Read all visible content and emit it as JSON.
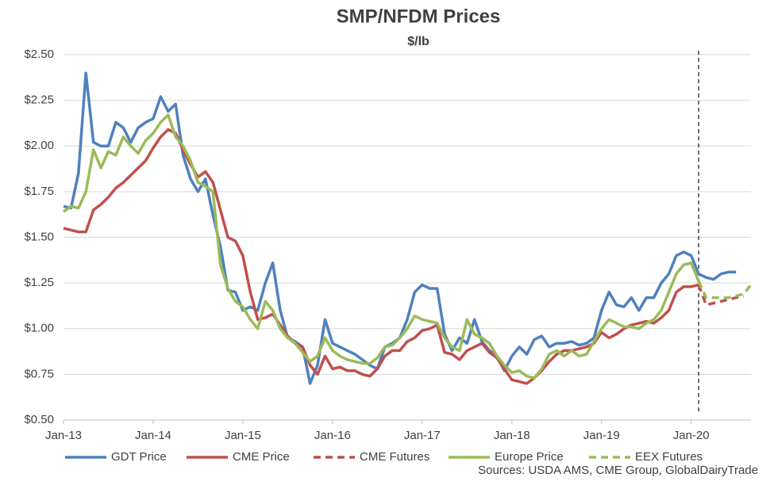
{
  "chart_data": {
    "type": "line",
    "title": "SMP/NFDM Prices",
    "subtitle": "$/lb",
    "source": "Sources:  USDA AMS, CME Group, GlobalDairyTrade",
    "categories": [
      "Jan-13",
      null,
      null,
      null,
      null,
      null,
      null,
      null,
      null,
      null,
      null,
      null,
      "Jan-14",
      null,
      null,
      null,
      null,
      null,
      null,
      null,
      null,
      null,
      null,
      null,
      "Jan-15",
      null,
      null,
      null,
      null,
      null,
      null,
      null,
      null,
      null,
      null,
      null,
      "Jan-16",
      null,
      null,
      null,
      null,
      null,
      null,
      null,
      null,
      null,
      null,
      null,
      "Jan-17",
      null,
      null,
      null,
      null,
      null,
      null,
      null,
      null,
      null,
      null,
      null,
      "Jan-18",
      null,
      null,
      null,
      null,
      null,
      null,
      null,
      null,
      null,
      null,
      null,
      "Jan-19",
      null,
      null,
      null,
      null,
      null,
      null,
      null,
      null,
      null,
      null,
      null,
      "Jan-20",
      null,
      null,
      null,
      null,
      null,
      null,
      null,
      null
    ],
    "ylim": [
      0.5,
      2.5
    ],
    "yticks": [
      {
        "value": 0.5,
        "label": "$0.50"
      },
      {
        "value": 0.75,
        "label": "$0.75"
      },
      {
        "value": 1.0,
        "label": "$1.00"
      },
      {
        "value": 1.25,
        "label": "$1.25"
      },
      {
        "value": 1.5,
        "label": "$1.50"
      },
      {
        "value": 1.75,
        "label": "$1.75"
      },
      {
        "value": 2.0,
        "label": "$2.00"
      },
      {
        "value": 2.25,
        "label": "$2.25"
      },
      {
        "value": 2.5,
        "label": "$2.50"
      }
    ],
    "grid": true,
    "legend": "bottom",
    "vline_index": 85,
    "series": [
      {
        "name": "GDT Price",
        "color": "#4f81bd",
        "dashed": false,
        "values": [
          1.67,
          1.66,
          1.85,
          2.4,
          2.02,
          2.0,
          2.0,
          2.13,
          2.1,
          2.02,
          2.1,
          2.13,
          2.15,
          2.27,
          2.19,
          2.23,
          1.95,
          1.82,
          1.75,
          1.82,
          1.62,
          1.45,
          1.21,
          1.2,
          1.1,
          1.12,
          1.1,
          1.25,
          1.36,
          1.1,
          0.95,
          0.93,
          0.9,
          0.7,
          0.8,
          1.05,
          0.92,
          0.9,
          0.88,
          0.86,
          0.83,
          0.8,
          0.78,
          0.9,
          0.92,
          0.95,
          1.05,
          1.2,
          1.24,
          1.22,
          1.22,
          0.97,
          0.88,
          0.95,
          0.92,
          1.05,
          0.93,
          0.88,
          0.85,
          0.77,
          0.85,
          0.9,
          0.86,
          0.94,
          0.96,
          0.9,
          0.92,
          0.92,
          0.93,
          0.91,
          0.92,
          0.95,
          1.1,
          1.2,
          1.13,
          1.12,
          1.17,
          1.1,
          1.17,
          1.17,
          1.25,
          1.3,
          1.4,
          1.42,
          1.4,
          1.3,
          1.28,
          1.27,
          1.3,
          1.31,
          1.31,
          null,
          null
        ]
      },
      {
        "name": "CME Price",
        "color": "#c0504d",
        "dashed": false,
        "values": [
          1.55,
          1.54,
          1.53,
          1.53,
          1.65,
          1.68,
          1.72,
          1.77,
          1.8,
          1.84,
          1.88,
          1.92,
          1.99,
          2.05,
          2.09,
          2.07,
          1.98,
          1.9,
          1.83,
          1.86,
          1.8,
          1.65,
          1.5,
          1.48,
          1.4,
          1.2,
          1.05,
          1.06,
          1.08,
          1.02,
          0.96,
          0.92,
          0.9,
          0.8,
          0.75,
          0.85,
          0.78,
          0.79,
          0.77,
          0.77,
          0.75,
          0.74,
          0.78,
          0.85,
          0.88,
          0.88,
          0.93,
          0.95,
          0.99,
          1.0,
          1.02,
          0.87,
          0.86,
          0.83,
          0.88,
          0.9,
          0.92,
          0.87,
          0.84,
          0.78,
          0.72,
          0.71,
          0.7,
          0.73,
          0.77,
          0.82,
          0.86,
          0.88,
          0.88,
          0.89,
          0.9,
          0.92,
          0.98,
          0.95,
          0.97,
          1.0,
          1.02,
          1.03,
          1.04,
          1.03,
          1.06,
          1.1,
          1.2,
          1.23,
          1.23,
          1.24,
          null,
          null,
          null,
          null,
          null,
          null,
          null
        ]
      },
      {
        "name": "CME Futures",
        "color": "#c0504d",
        "dashed": true,
        "values": [
          null,
          null,
          null,
          null,
          null,
          null,
          null,
          null,
          null,
          null,
          null,
          null,
          null,
          null,
          null,
          null,
          null,
          null,
          null,
          null,
          null,
          null,
          null,
          null,
          null,
          null,
          null,
          null,
          null,
          null,
          null,
          null,
          null,
          null,
          null,
          null,
          null,
          null,
          null,
          null,
          null,
          null,
          null,
          null,
          null,
          null,
          null,
          null,
          null,
          null,
          null,
          null,
          null,
          null,
          null,
          null,
          null,
          null,
          null,
          null,
          null,
          null,
          null,
          null,
          null,
          null,
          null,
          null,
          null,
          null,
          null,
          null,
          null,
          null,
          null,
          null,
          null,
          null,
          null,
          null,
          null,
          null,
          null,
          null,
          null,
          1.24,
          1.13,
          1.14,
          1.15,
          1.16,
          1.17,
          1.18,
          null
        ]
      },
      {
        "name": "Europe Price",
        "color": "#9bbb59",
        "dashed": false,
        "values": [
          1.64,
          1.67,
          1.66,
          1.75,
          1.98,
          1.88,
          1.97,
          1.95,
          2.05,
          2.0,
          1.96,
          2.03,
          2.07,
          2.13,
          2.17,
          2.05,
          2.0,
          1.92,
          1.8,
          1.78,
          1.75,
          1.35,
          1.22,
          1.15,
          1.12,
          1.05,
          1.0,
          1.15,
          1.1,
          1.0,
          0.95,
          0.92,
          0.87,
          0.82,
          0.85,
          0.95,
          0.88,
          0.85,
          0.83,
          0.82,
          0.81,
          0.81,
          0.84,
          0.9,
          0.91,
          0.95,
          1.0,
          1.07,
          1.05,
          1.04,
          1.03,
          0.95,
          0.9,
          0.88,
          1.05,
          0.97,
          0.95,
          0.92,
          0.85,
          0.8,
          0.76,
          0.77,
          0.74,
          0.73,
          0.78,
          0.86,
          0.88,
          0.85,
          0.88,
          0.85,
          0.86,
          0.93,
          1.0,
          1.05,
          1.03,
          1.01,
          1.01,
          1.0,
          1.03,
          1.05,
          1.1,
          1.2,
          1.3,
          1.35,
          1.36,
          1.26,
          null,
          null,
          null,
          null,
          null,
          null,
          null
        ]
      },
      {
        "name": "EEX Futures",
        "color": "#9bbb59",
        "dashed": true,
        "values": [
          null,
          null,
          null,
          null,
          null,
          null,
          null,
          null,
          null,
          null,
          null,
          null,
          null,
          null,
          null,
          null,
          null,
          null,
          null,
          null,
          null,
          null,
          null,
          null,
          null,
          null,
          null,
          null,
          null,
          null,
          null,
          null,
          null,
          null,
          null,
          null,
          null,
          null,
          null,
          null,
          null,
          null,
          null,
          null,
          null,
          null,
          null,
          null,
          null,
          null,
          null,
          null,
          null,
          null,
          null,
          null,
          null,
          null,
          null,
          null,
          null,
          null,
          null,
          null,
          null,
          null,
          null,
          null,
          null,
          null,
          null,
          null,
          null,
          null,
          null,
          null,
          null,
          null,
          null,
          null,
          null,
          null,
          null,
          null,
          null,
          1.26,
          1.17,
          1.17,
          1.17,
          1.17,
          1.18,
          1.19,
          1.24
        ]
      }
    ]
  }
}
